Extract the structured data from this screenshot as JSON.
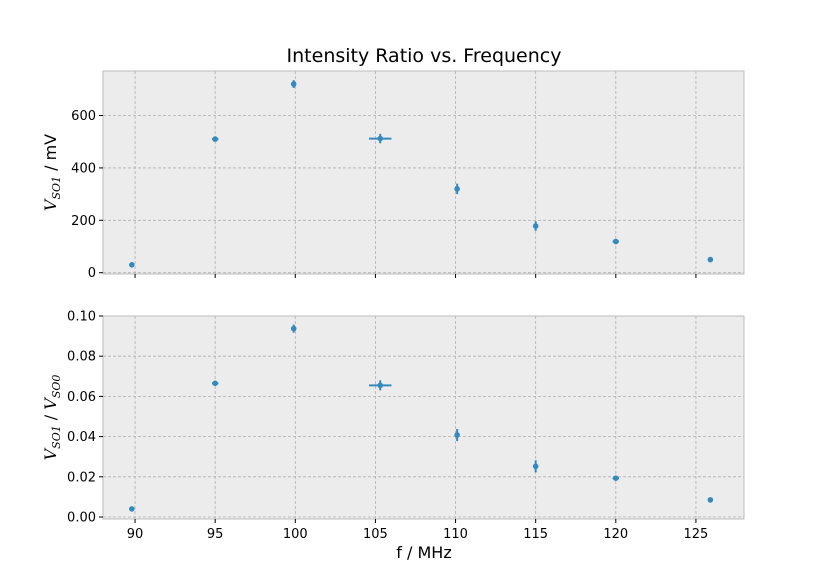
{
  "figure": {
    "title": "Intensity Ratio vs. Frequency",
    "xlabel": "f / MHz",
    "colors": {
      "background": "#ffffff",
      "plot_bg": "#ececec",
      "grid": "#b0b0b0",
      "spine": "#bcbcbc",
      "series": "#348abd"
    }
  },
  "chart_data": [
    {
      "type": "scatter",
      "title": "Intensity Ratio vs. Frequency",
      "xlabel": "",
      "ylabel": {
        "var": "V",
        "sub": "SO1",
        "unit": " / mV"
      },
      "xlim": [
        88,
        128
      ],
      "ylim": [
        -5,
        770
      ],
      "xticks": [
        90,
        95,
        100,
        105,
        110,
        115,
        120,
        125
      ],
      "show_xtick_labels": false,
      "yticks": [
        0,
        200,
        400,
        600
      ],
      "ytick_labels": [
        "0",
        "200",
        "400",
        "600"
      ],
      "grid": true,
      "marker": "point with error bars",
      "points": [
        {
          "x": 89.8,
          "y": 30,
          "xerr": 0.1,
          "yerr": 5
        },
        {
          "x": 95.0,
          "y": 510,
          "xerr": 0.2,
          "yerr": 8
        },
        {
          "x": 99.9,
          "y": 720,
          "xerr": 0.1,
          "yerr": 15
        },
        {
          "x": 105.3,
          "y": 512,
          "xerr": 0.7,
          "yerr": 18
        },
        {
          "x": 110.1,
          "y": 320,
          "xerr": 0.1,
          "yerr": 20
        },
        {
          "x": 115.0,
          "y": 178,
          "xerr": 0.1,
          "yerr": 18
        },
        {
          "x": 120.0,
          "y": 119,
          "xerr": 0.2,
          "yerr": 5
        },
        {
          "x": 125.9,
          "y": 50,
          "xerr": 0.1,
          "yerr": 4
        }
      ]
    },
    {
      "type": "scatter",
      "xlabel": "f / MHz",
      "ylabel": {
        "var": "V",
        "sub": "SO1",
        "sep": " / ",
        "var2": "V",
        "sub2": "SO0"
      },
      "xlim": [
        88,
        128
      ],
      "ylim": [
        -0.001,
        0.1
      ],
      "xticks": [
        90,
        95,
        100,
        105,
        110,
        115,
        120,
        125
      ],
      "xtick_labels": [
        "90",
        "95",
        "100",
        "105",
        "110",
        "115",
        "120",
        "125"
      ],
      "show_xtick_labels": true,
      "yticks": [
        0,
        0.02,
        0.04,
        0.06,
        0.08,
        0.1
      ],
      "ytick_labels": [
        "0.00",
        "0.02",
        "0.04",
        "0.06",
        "0.08",
        "0.10"
      ],
      "grid": true,
      "marker": "point with error bars",
      "points": [
        {
          "x": 89.8,
          "y": 0.004,
          "xerr": 0.1,
          "yerr": 0.0004
        },
        {
          "x": 95.0,
          "y": 0.0665,
          "xerr": 0.2,
          "yerr": 0.001
        },
        {
          "x": 99.9,
          "y": 0.0937,
          "xerr": 0.1,
          "yerr": 0.002
        },
        {
          "x": 105.3,
          "y": 0.0655,
          "xerr": 0.7,
          "yerr": 0.0025
        },
        {
          "x": 110.1,
          "y": 0.0408,
          "xerr": 0.1,
          "yerr": 0.003
        },
        {
          "x": 115.0,
          "y": 0.0252,
          "xerr": 0.1,
          "yerr": 0.003
        },
        {
          "x": 120.0,
          "y": 0.0193,
          "xerr": 0.2,
          "yerr": 0.001
        },
        {
          "x": 125.9,
          "y": 0.0085,
          "xerr": 0.1,
          "yerr": 0.0006
        }
      ]
    }
  ]
}
